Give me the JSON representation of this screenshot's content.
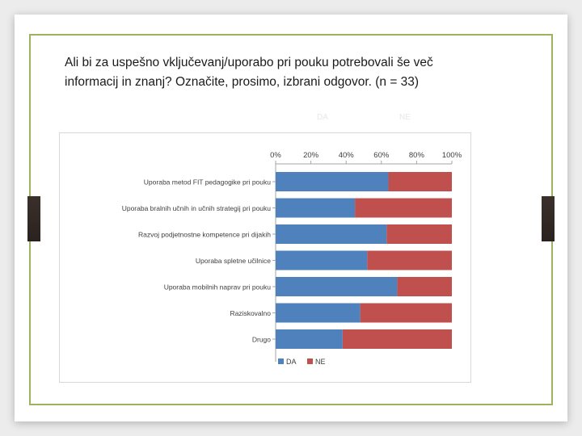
{
  "slide": {
    "title": "Ali bi za uspešno vključevanj/uporabo pri pouku potrebovali še več\ninformacij in znanj? Označite, prosimo, izbrani odgovor. (n = 33)",
    "faint_labels": [
      "DA",
      "NE"
    ]
  },
  "colors": {
    "da": "#4f81bd",
    "ne": "#c0504d",
    "frame": "#9bb35a",
    "tab": "#2f2724"
  },
  "chart_data": {
    "type": "bar",
    "orientation": "horizontal",
    "stacked": "percent",
    "categories": [
      "Uporaba metod FIT pedagogike pri pouku",
      "Uporaba bralnih učnih in učnih strategij pri pouku",
      "Razvoj podjetnostne kompetence pri dijakih",
      "Uporaba spletne učilnice",
      "Uporaba mobilnih naprav pri pouku",
      "Raziskovalno",
      "Drugo"
    ],
    "series": [
      {
        "name": "DA",
        "values": [
          64,
          45,
          63,
          52,
          69,
          48,
          38
        ]
      },
      {
        "name": "NE",
        "values": [
          36,
          55,
          37,
          48,
          31,
          52,
          62
        ]
      }
    ],
    "x_ticks": [
      "0%",
      "20%",
      "40%",
      "60%",
      "80%",
      "100%"
    ],
    "xlim": [
      0,
      100
    ],
    "x_axis_position": "top",
    "grid": false,
    "legend": "bottom"
  }
}
